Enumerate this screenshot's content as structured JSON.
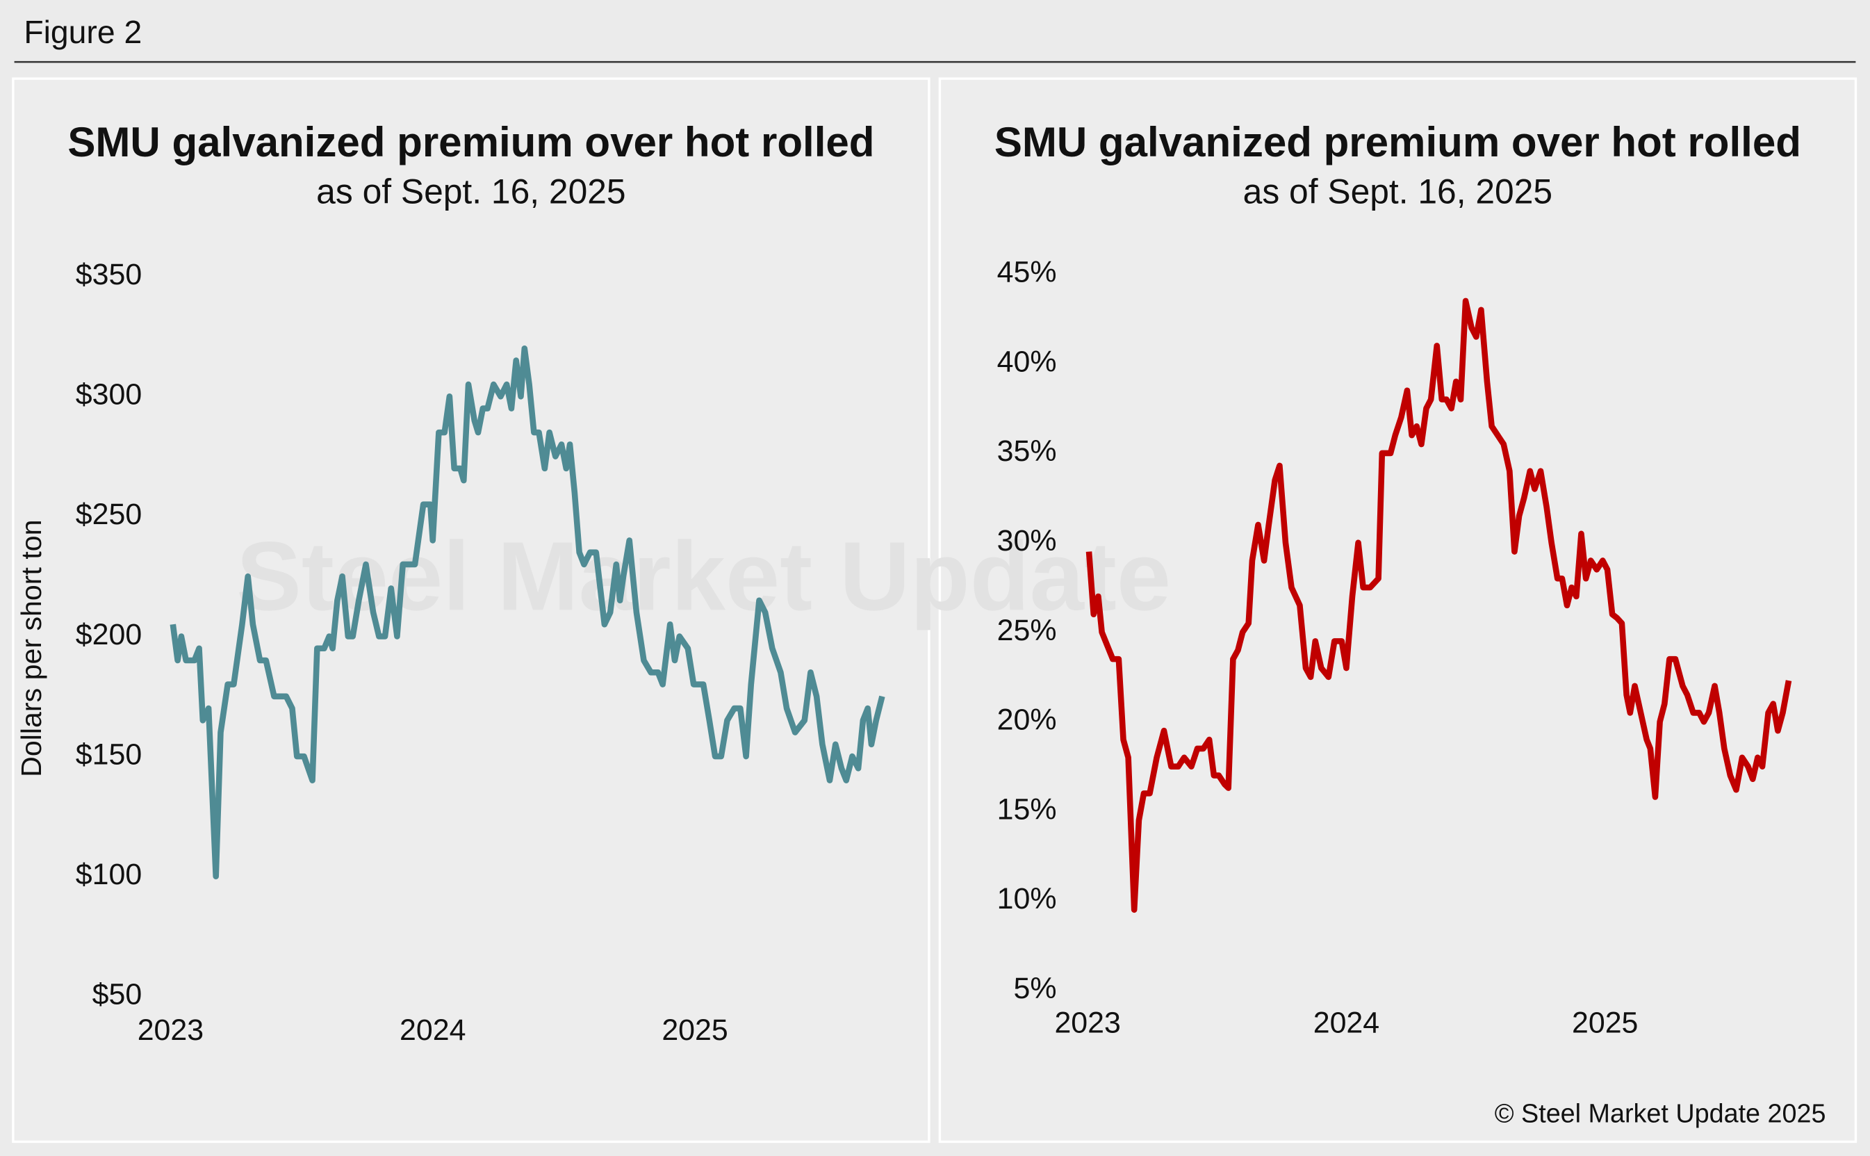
{
  "figure_label": "Figure 2",
  "copyright": "© Steel Market Update 2025",
  "watermark": "Steel Market Update",
  "chart_data": [
    {
      "type": "line",
      "title": "SMU galvanized premium over hot rolled",
      "subtitle": "as of Sept. 16, 2025",
      "y_label": "Dollars per short ton",
      "color": "#4f8b94",
      "xlim": [
        2023,
        2025.72
      ],
      "xticks": [
        2023,
        2024,
        2025
      ],
      "ylim": [
        50,
        350
      ],
      "yticks": [
        {
          "value": 50,
          "label": "$50"
        },
        {
          "value": 100,
          "label": "$100"
        },
        {
          "value": 150,
          "label": "$150"
        },
        {
          "value": 200,
          "label": "$200"
        },
        {
          "value": 250,
          "label": "$250"
        },
        {
          "value": 300,
          "label": "$300"
        },
        {
          "value": 350,
          "label": "$350"
        }
      ],
      "x": [
        2023.009,
        2023.027,
        2023.041,
        2023.059,
        2023.091,
        2023.109,
        2023.123,
        2023.145,
        2023.173,
        2023.191,
        2023.218,
        2023.241,
        2023.273,
        2023.295,
        2023.314,
        2023.341,
        2023.364,
        2023.395,
        2023.441,
        2023.464,
        2023.482,
        2023.509,
        2023.541,
        2023.559,
        2023.586,
        2023.605,
        2023.618,
        2023.636,
        2023.655,
        2023.677,
        2023.695,
        2023.718,
        2023.745,
        2023.773,
        2023.795,
        2023.818,
        2023.841,
        2023.864,
        2023.886,
        2023.905,
        2023.932,
        2023.964,
        2023.991,
        2024.0,
        2024.023,
        2024.045,
        2024.064,
        2024.082,
        2024.105,
        2024.118,
        2024.136,
        2024.159,
        2024.173,
        2024.191,
        2024.209,
        2024.232,
        2024.259,
        2024.282,
        2024.3,
        2024.318,
        2024.336,
        2024.35,
        2024.368,
        2024.386,
        2024.405,
        2024.427,
        2024.445,
        2024.468,
        2024.491,
        2024.509,
        2024.523,
        2024.541,
        2024.559,
        2024.577,
        2024.6,
        2024.623,
        2024.655,
        2024.677,
        2024.7,
        2024.714,
        2024.727,
        2024.75,
        2024.777,
        2024.805,
        2024.832,
        2024.859,
        2024.877,
        2024.905,
        2024.923,
        2024.941,
        2024.973,
        2024.995,
        2025.032,
        2025.055,
        2025.077,
        2025.1,
        2025.123,
        2025.15,
        2025.173,
        2025.195,
        2025.214,
        2025.245,
        2025.268,
        2025.295,
        2025.327,
        2025.35,
        2025.382,
        2025.418,
        2025.441,
        2025.464,
        2025.486,
        2025.514,
        2025.536,
        2025.559,
        2025.577,
        2025.6,
        2025.623,
        2025.641,
        2025.659,
        2025.673,
        2025.691,
        2025.714
      ],
      "values": [
        205,
        190,
        200,
        190,
        190,
        195,
        165,
        170,
        100,
        160,
        180,
        180,
        205,
        225,
        205,
        190,
        190,
        175,
        175,
        170,
        150,
        150,
        140,
        195,
        195,
        200,
        195,
        215,
        225,
        200,
        200,
        215,
        230,
        210,
        200,
        200,
        220,
        200,
        230,
        230,
        230,
        255,
        255,
        240,
        285,
        285,
        300,
        270,
        270,
        265,
        305,
        290,
        285,
        295,
        295,
        305,
        300,
        305,
        295,
        315,
        300,
        320,
        305,
        285,
        285,
        270,
        285,
        275,
        280,
        270,
        280,
        260,
        235,
        230,
        235,
        235,
        205,
        210,
        230,
        215,
        225,
        240,
        210,
        190,
        185,
        185,
        180,
        205,
        190,
        200,
        195,
        180,
        180,
        165,
        150,
        150,
        165,
        170,
        170,
        150,
        180,
        215,
        210,
        195,
        185,
        170,
        160,
        165,
        185,
        175,
        155,
        140,
        155,
        145,
        140,
        150,
        145,
        165,
        170,
        155,
        165,
        175
      ]
    },
    {
      "type": "line",
      "title": "SMU galvanized premium over hot rolled",
      "subtitle": "as of Sept. 16, 2025",
      "color": "#c00000",
      "xlim": [
        2023,
        2025.72
      ],
      "xticks": [
        2023,
        2024,
        2025
      ],
      "ylim": [
        5,
        45
      ],
      "yticks": [
        {
          "value": 5,
          "label": "5%"
        },
        {
          "value": 10,
          "label": "10%"
        },
        {
          "value": 15,
          "label": "15%"
        },
        {
          "value": 20,
          "label": "20%"
        },
        {
          "value": 25,
          "label": "25%"
        },
        {
          "value": 30,
          "label": "30%"
        },
        {
          "value": 35,
          "label": "35%"
        },
        {
          "value": 40,
          "label": "40%"
        },
        {
          "value": 45,
          "label": "45%"
        }
      ],
      "x": [
        2023.005,
        2023.023,
        2023.041,
        2023.055,
        2023.097,
        2023.12,
        2023.138,
        2023.157,
        2023.18,
        2023.198,
        2023.217,
        2023.24,
        2023.267,
        2023.295,
        2023.323,
        2023.35,
        2023.373,
        2023.401,
        2023.424,
        2023.447,
        2023.47,
        2023.488,
        2023.507,
        2023.53,
        2023.544,
        2023.562,
        2023.581,
        2023.599,
        2023.622,
        2023.636,
        2023.659,
        2023.682,
        2023.7,
        2023.724,
        2023.742,
        2023.765,
        2023.788,
        2023.82,
        2023.843,
        2023.862,
        2023.88,
        2023.903,
        2023.931,
        2023.954,
        2023.982,
        2024.0,
        2024.023,
        2024.046,
        2024.065,
        2024.092,
        2024.124,
        2024.138,
        2024.171,
        2024.189,
        2024.212,
        2024.235,
        2024.253,
        2024.272,
        2024.29,
        2024.309,
        2024.327,
        2024.35,
        2024.369,
        2024.387,
        2024.406,
        2024.424,
        2024.442,
        2024.461,
        2024.484,
        2024.502,
        2024.521,
        2024.544,
        2024.562,
        2024.585,
        2024.608,
        2024.631,
        2024.65,
        2024.668,
        2024.687,
        2024.71,
        2024.728,
        2024.751,
        2024.774,
        2024.793,
        2024.816,
        2024.834,
        2024.853,
        2024.871,
        2024.889,
        2024.908,
        2024.926,
        2024.945,
        2024.968,
        2024.991,
        2025.009,
        2025.028,
        2025.046,
        2025.065,
        2025.083,
        2025.097,
        2025.115,
        2025.138,
        2025.161,
        2025.175,
        2025.194,
        2025.212,
        2025.23,
        2025.249,
        2025.272,
        2025.3,
        2025.318,
        2025.341,
        2025.364,
        2025.382,
        2025.401,
        2025.424,
        2025.442,
        2025.461,
        2025.484,
        2025.507,
        2025.53,
        2025.553,
        2025.571,
        2025.59,
        2025.608,
        2025.631,
        2025.65,
        2025.668,
        2025.687,
        2025.71
      ],
      "values": [
        29.5,
        26,
        27,
        25,
        23.5,
        23.5,
        19,
        18,
        9.5,
        14.5,
        16,
        16,
        18,
        19.5,
        17.5,
        17.5,
        18,
        17.5,
        18.5,
        18.5,
        19,
        17,
        17,
        16.5,
        16.3,
        23.5,
        24,
        25,
        25.5,
        29,
        31,
        29,
        31,
        33.5,
        34.3,
        30,
        27.5,
        26.5,
        23,
        22.5,
        24.5,
        23,
        22.5,
        24.5,
        24.5,
        23,
        27,
        30,
        27.5,
        27.5,
        28,
        35,
        35,
        36,
        37,
        38.5,
        36,
        36.5,
        35.5,
        37.5,
        38,
        41,
        38,
        38,
        37.5,
        39,
        38,
        43.5,
        42,
        41.5,
        43,
        39,
        36.5,
        36,
        35.5,
        34,
        29.5,
        31.5,
        32.5,
        34,
        33,
        34,
        32,
        30,
        28,
        28,
        26.5,
        27.5,
        27,
        30.5,
        28,
        29,
        28.5,
        29,
        28.5,
        26,
        25.8,
        25.5,
        21.5,
        20.5,
        22,
        20.5,
        19,
        18.5,
        15.8,
        20,
        21,
        23.5,
        23.5,
        22,
        21.5,
        20.5,
        20.5,
        20,
        20.5,
        22,
        20.5,
        18.5,
        17,
        16.2,
        18,
        17.5,
        16.8,
        18,
        17.5,
        20.5,
        21,
        19.5,
        20.5,
        22.3
      ]
    }
  ]
}
